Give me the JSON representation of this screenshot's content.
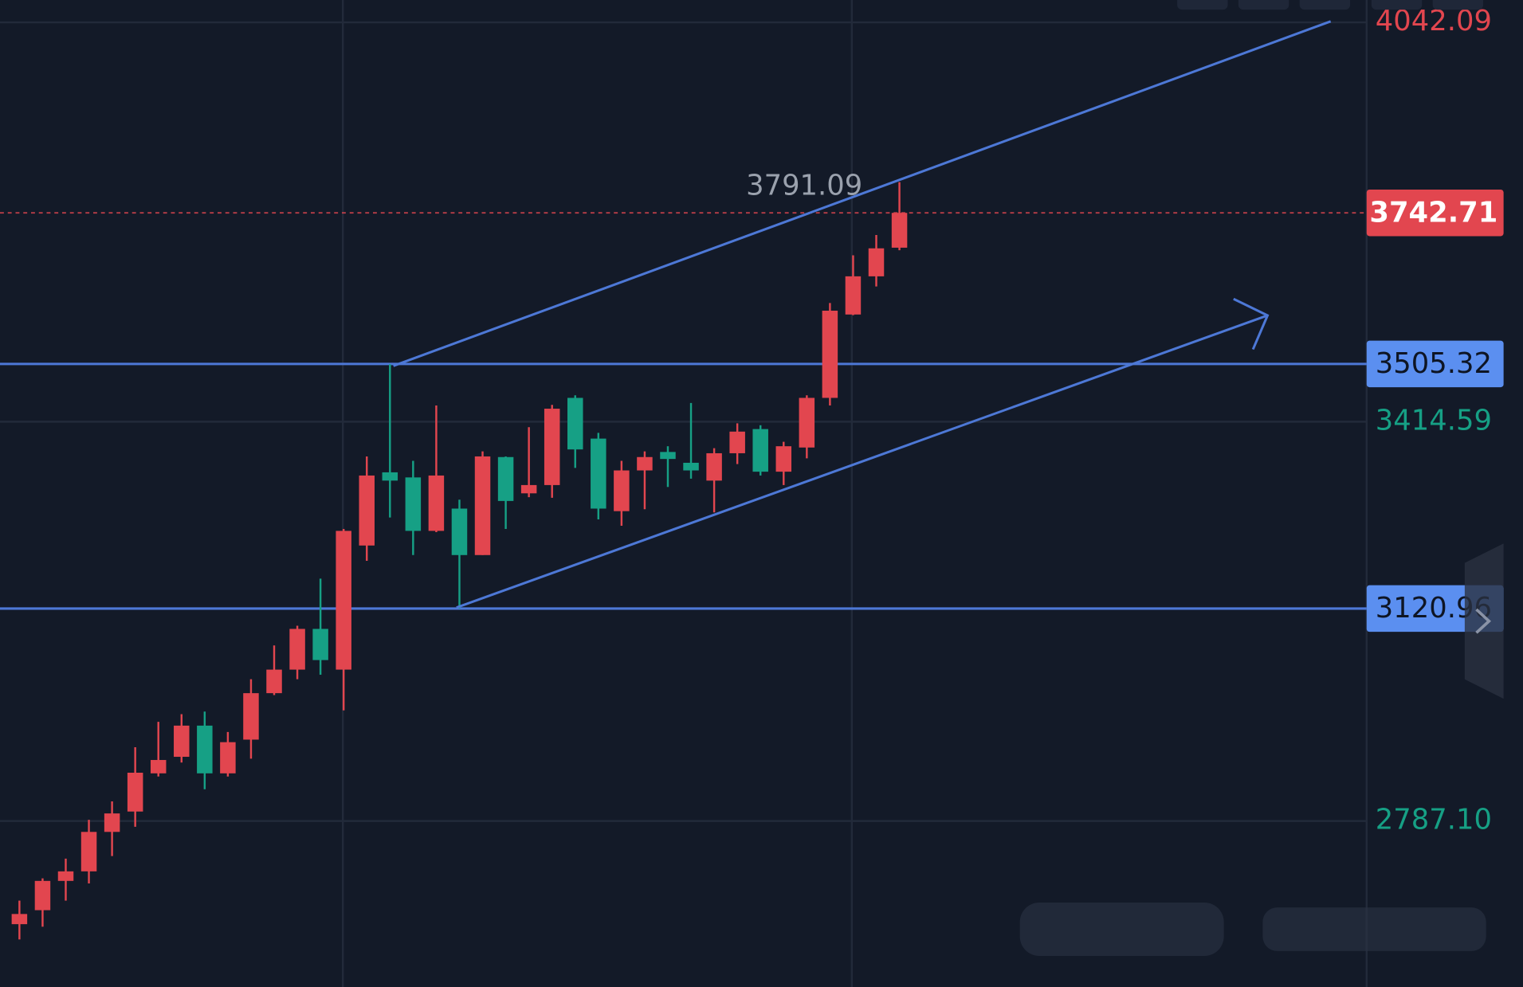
{
  "chart_data": {
    "type": "candlestick",
    "categories": [
      null,
      null,
      null,
      null,
      null,
      null,
      null,
      null,
      null,
      null,
      null,
      null,
      null,
      null,
      null,
      null,
      null,
      null,
      null,
      null,
      null,
      null,
      null,
      null,
      null,
      null,
      null,
      null,
      null,
      null,
      null,
      null,
      null,
      null,
      null,
      null,
      null,
      null,
      null
    ],
    "open": [
      2625,
      2647,
      2693,
      2708,
      2770,
      2802,
      2862,
      2888,
      2937,
      2862,
      2915,
      2988,
      3025,
      3089,
      3025,
      3220,
      3335,
      3327,
      3243,
      3278,
      3205,
      3359,
      3302,
      3315,
      3452,
      3388,
      3274,
      3338,
      3367,
      3350,
      3322,
      3365,
      3403,
      3336,
      3374,
      3452,
      3583,
      3643,
      3688
    ],
    "high": [
      2662,
      2697,
      2728,
      2789,
      2818,
      2903,
      2943,
      2955,
      2959,
      2927,
      3010,
      3063,
      3094,
      3168,
      3246,
      3360,
      3505,
      3353,
      3440,
      3292,
      3368,
      3360,
      3406,
      3441,
      3456,
      3397,
      3353,
      3368,
      3376,
      3444,
      3373,
      3412,
      3409,
      3383,
      3456,
      3601,
      3676,
      3708,
      3791.09
    ],
    "low": [
      2601,
      2621,
      2662,
      2689,
      2732,
      2778,
      2857,
      2879,
      2837,
      2857,
      2885,
      2985,
      3010,
      3017,
      2961,
      3196,
      3264,
      3205,
      3241,
      3121,
      3205,
      3246,
      3296,
      3295,
      3342,
      3261,
      3251,
      3277,
      3312,
      3325,
      3272,
      3348,
      3330,
      3315,
      3357,
      3440,
      3582,
      3627,
      3684
    ],
    "close": [
      2641,
      2693,
      2708,
      2770,
      2799,
      2863,
      2883,
      2937,
      2862,
      2911,
      2988,
      3025,
      3089,
      3040,
      3243,
      3330,
      3322,
      3243,
      3330,
      3205,
      3360,
      3290,
      3315,
      3435,
      3371,
      3278,
      3338,
      3359,
      3356,
      3338,
      3365,
      3399,
      3336,
      3376,
      3452,
      3589,
      3643,
      3687,
      3742.71
    ],
    "up_color": "#e2464f",
    "down_color": "#16a085",
    "ylim": [
      2526.28,
      4077.2
    ],
    "yticks": [
      4042.09,
      3414.59,
      {
        "value": 2787.1,
        "label": "2787.10"
      }
    ],
    "grid": true,
    "horizontal_lines": [
      3505.32,
      3120.96
    ]
  }
}
